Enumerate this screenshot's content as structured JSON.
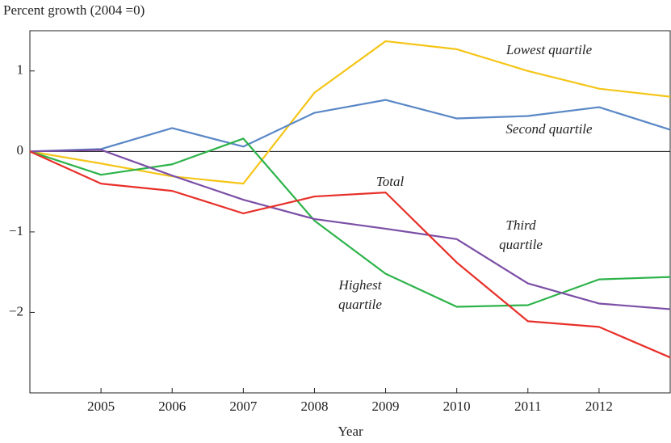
{
  "chart_data": {
    "type": "line",
    "y_axis_label": "Percent growth (2004 =0)",
    "x_axis_label": "Year",
    "x": [
      2004,
      2005,
      2006,
      2007,
      2008,
      2009,
      2010,
      2011,
      2012,
      2013
    ],
    "xlim": [
      2004,
      2013
    ],
    "xticks": [
      2005,
      2006,
      2007,
      2008,
      2009,
      2010,
      2011,
      2012
    ],
    "ylim": [
      -3,
      1.5
    ],
    "yticks": [
      1,
      0,
      {
        "value": -1,
        "label": "−1"
      },
      {
        "value": -2,
        "label": "−2"
      }
    ],
    "series": [
      {
        "name": "Lowest quartile",
        "color": "#f5c518",
        "values": [
          0,
          -0.15,
          -0.31,
          -0.4,
          0.73,
          1.37,
          1.27,
          1.0,
          0.78,
          0.68
        ]
      },
      {
        "name": "Second quartile",
        "color": "#5a87c6",
        "values": [
          0,
          0.03,
          0.29,
          0.06,
          0.48,
          0.64,
          0.41,
          0.44,
          0.55,
          0.27
        ]
      },
      {
        "name": "Highest quartile",
        "color": "#2db34a",
        "values": [
          0,
          -0.29,
          -0.16,
          0.16,
          -0.86,
          -1.52,
          -1.93,
          -1.91,
          -1.59,
          -1.56
        ]
      },
      {
        "name": "Third quartile",
        "color": "#7b4fa6",
        "values": [
          0,
          0.02,
          -0.3,
          -0.6,
          -0.84,
          -0.96,
          -1.09,
          -1.64,
          -1.89,
          -1.96
        ]
      },
      {
        "name": "Total",
        "color": "#e8302a",
        "values": [
          0,
          -0.4,
          -0.49,
          -0.77,
          -0.56,
          -0.51,
          -1.38,
          -2.11,
          -2.18,
          -2.56
        ]
      }
    ]
  }
}
